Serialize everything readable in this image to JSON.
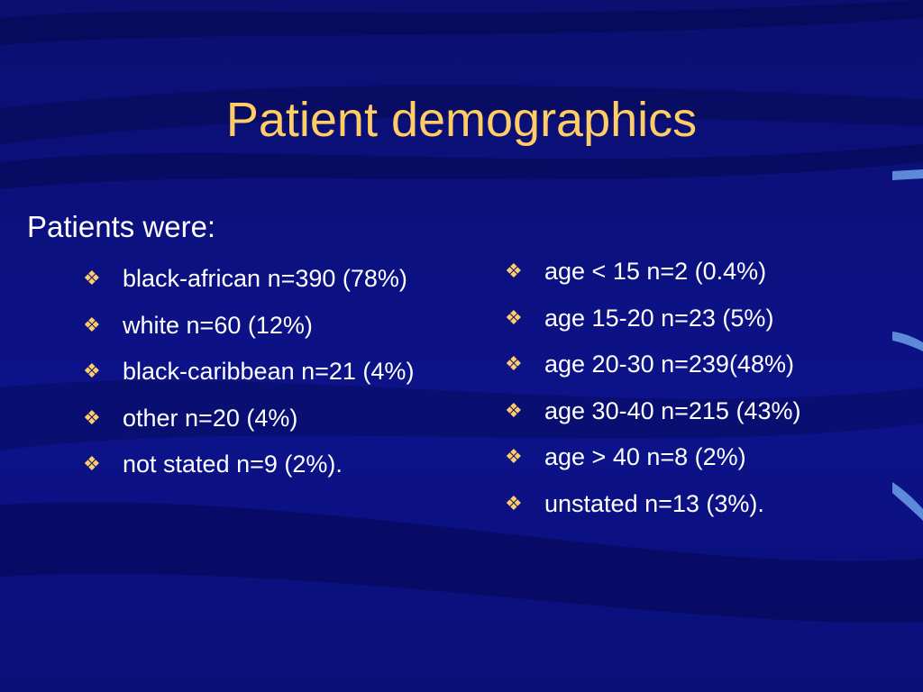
{
  "colors": {
    "background": "#0a0f7a",
    "title": "#ffcc66",
    "text": "#ffffff",
    "bullet": "#ffcc66"
  },
  "icons": {
    "bullet": "❖"
  },
  "title": "Patient demographics",
  "intro": "Patients were:",
  "left_bullets": [
    "black-african n=390 (78%)",
    "white n=60 (12%)",
    "black-caribbean n=21 (4%)",
    "other n=20 (4%)",
    "not stated n=9 (2%)."
  ],
  "right_bullets": [
    "age < 15 n=2 (0.4%)",
    "age 15-20 n=23 (5%)",
    "age 20-30 n=239(48%)",
    "age 30-40 n=215 (43%)",
    "age > 40 n=8 (2%)",
    "unstated n=13 (3%)."
  ]
}
